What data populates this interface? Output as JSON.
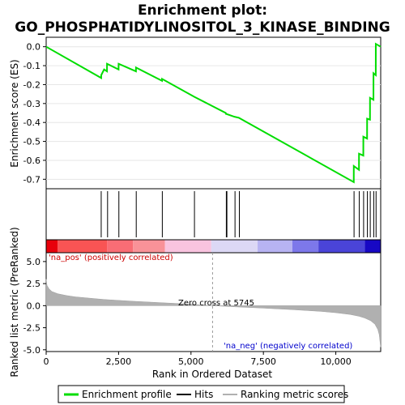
{
  "chart_data": {
    "type": "line",
    "title_line1": "Enrichment plot:",
    "title_line2": "GO_PHOSPHATIDYLINOSITOL_3_KINASE_BINDING",
    "top_panel": {
      "ylabel": "Enrichment score (ES)",
      "ylim": [
        -0.75,
        0.05
      ],
      "yticks": [
        "0.0",
        "-0.1",
        "-0.2",
        "-0.3",
        "-0.4",
        "-0.5",
        "-0.6",
        "-0.7"
      ],
      "ytick_values": [
        0.0,
        -0.1,
        -0.2,
        -0.3,
        -0.4,
        -0.5,
        -0.6,
        -0.7
      ],
      "series_name": "Enrichment profile",
      "color": "#00dd00",
      "x": [
        0,
        1900,
        1901,
        2000,
        2100,
        2101,
        2500,
        2501,
        3100,
        3101,
        4000,
        4001,
        5120,
        6200,
        6210,
        6220,
        6500,
        6501,
        6650,
        6651,
        10620,
        10621,
        10800,
        10801,
        10950,
        10951,
        11080,
        11081,
        11180,
        11181,
        11300,
        11301,
        11380,
        11381,
        11550
      ],
      "y": [
        0.0,
        -0.165,
        -0.15,
        -0.12,
        -0.13,
        -0.09,
        -0.12,
        -0.09,
        -0.13,
        -0.11,
        -0.18,
        -0.17,
        -0.265,
        -0.35,
        -0.355,
        -0.355,
        -0.37,
        -0.37,
        -0.375,
        -0.375,
        -0.715,
        -0.63,
        -0.65,
        -0.565,
        -0.575,
        -0.475,
        -0.485,
        -0.38,
        -0.385,
        -0.27,
        -0.28,
        -0.14,
        -0.15,
        0.015,
        0.0
      ]
    },
    "hits_panel": {
      "series_name": "Hits",
      "positions": [
        1900,
        2120,
        2510,
        3110,
        4010,
        5120,
        6220,
        6240,
        6520,
        6670,
        10630,
        10810,
        10960,
        11090,
        11190,
        11310,
        11390
      ]
    },
    "color_bar": {
      "segments": [
        {
          "start": 0,
          "end": 400,
          "color": "#e8000b"
        },
        {
          "start": 400,
          "end": 2100,
          "color": "#f95454"
        },
        {
          "start": 2100,
          "end": 3000,
          "color": "#f96d75"
        },
        {
          "start": 3000,
          "end": 4100,
          "color": "#f99298"
        },
        {
          "start": 4100,
          "end": 5700,
          "color": "#f9c4df"
        },
        {
          "start": 5700,
          "end": 7300,
          "color": "#dcd8f5"
        },
        {
          "start": 7300,
          "end": 8500,
          "color": "#b7b3f2"
        },
        {
          "start": 8500,
          "end": 9400,
          "color": "#7d78ea"
        },
        {
          "start": 9400,
          "end": 11000,
          "color": "#4a44d8"
        },
        {
          "start": 11000,
          "end": 11550,
          "color": "#1708c4"
        }
      ]
    },
    "bottom_panel": {
      "ylabel": "Ranked list metric (PreRanked)",
      "xlabel": "Rank in Ordered Dataset",
      "ylim": [
        -5.2,
        6.0
      ],
      "yticks": [
        "5.0",
        "2.5",
        "0.0",
        "-2.5",
        "-5.0"
      ],
      "ytick_values": [
        5.0,
        2.5,
        0.0,
        -2.5,
        -5.0
      ],
      "xlim": [
        0,
        11550
      ],
      "xticks": [
        "0",
        "2,500",
        "5,000",
        "7,500",
        "10,000"
      ],
      "xtick_values": [
        0,
        2500,
        5000,
        7500,
        10000
      ],
      "series_name": "Ranking metric scores",
      "color": "#b0b0b0",
      "x": [
        0,
        30,
        100,
        200,
        400,
        700,
        1000,
        1500,
        2000,
        3000,
        4000,
        5000,
        5745,
        6500,
        7500,
        8500,
        9500,
        10000,
        10500,
        10800,
        11000,
        11200,
        11350,
        11450,
        11500,
        11530,
        11550
      ],
      "y": [
        3.0,
        2.3,
        1.9,
        1.6,
        1.35,
        1.15,
        1.0,
        0.85,
        0.7,
        0.5,
        0.33,
        0.17,
        0.0,
        -0.13,
        -0.28,
        -0.45,
        -0.65,
        -0.8,
        -1.0,
        -1.2,
        -1.4,
        -1.7,
        -2.1,
        -2.7,
        -3.3,
        -4.2,
        -4.7
      ],
      "annotations": {
        "pos_label": "'na_pos' (positively correlated)",
        "zero_cross": "Zero cross at 5745",
        "zero_cross_value": 5745,
        "neg_label": "'na_neg' (negatively correlated)",
        "pos_color": "#cc0000",
        "neg_color": "#0000cc"
      }
    },
    "legend": {
      "items": [
        {
          "label": "Enrichment profile",
          "color": "#00dd00"
        },
        {
          "label": "Hits",
          "color": "#000000"
        },
        {
          "label": "Ranking metric scores",
          "color": "#b0b0b0"
        }
      ]
    }
  }
}
